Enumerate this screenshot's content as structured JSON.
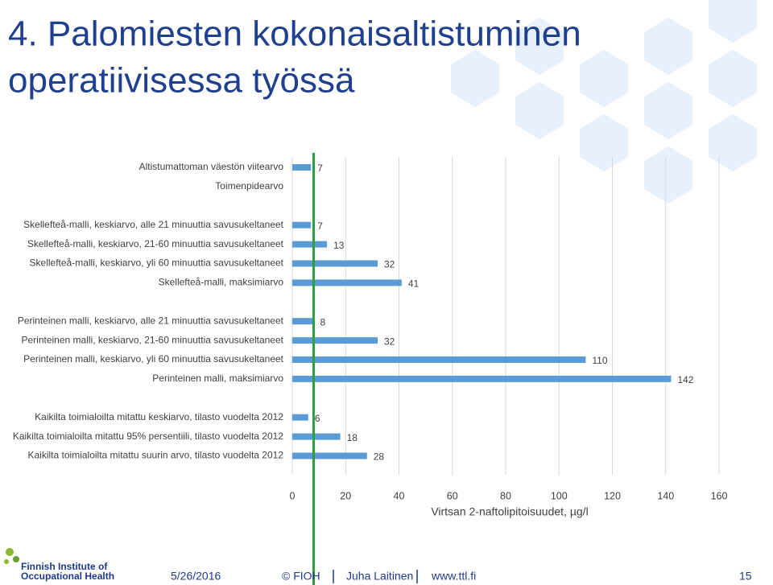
{
  "title": [
    "4. Palomiesten kokonaisaltistuminen",
    "operatiivisessa työssä"
  ],
  "chart_data": {
    "type": "hbar",
    "categories": [
      "Altistumattoman väestön viitearvo",
      "Toimenpidearvo",
      null,
      "Skellefteå-malli, keskiarvo, alle 21 minuuttia savusukeltaneet",
      "Skellefteå-malli, keskiarvo, 21-60 minuuttia savusukeltaneet",
      "Skellefteå-malli, keskiarvo, yli 60 minuuttia savusukeltaneet",
      "Skellefteå-malli, maksimiarvo",
      null,
      "Perinteinen malli, keskiarvo, alle 21 minuuttia savusukeltaneet",
      "Perinteinen malli, keskiarvo, 21-60 minuuttia savusukeltaneet",
      "Perinteinen malli, keskiarvo, yli 60 minuuttia savusukeltaneet",
      "Perinteinen malli, maksimiarvo",
      null,
      "Kaikilta toimialoilta mitattu keskiarvo, tilasto vuodelta 2012",
      "Kaikilta toimialoilta mitattu 95% persentiili, tilasto vuodelta 2012",
      "Kaikilta toimialoilta mitattu suurin arvo, tilasto vuodelta 2012"
    ],
    "values": [
      7,
      null,
      null,
      7,
      13,
      32,
      41,
      null,
      8,
      32,
      110,
      142,
      null,
      6,
      18,
      28
    ],
    "color": "#5b9bd5",
    "xlim": [
      0,
      160
    ],
    "xticks": [
      0,
      20,
      40,
      60,
      80,
      100,
      120,
      140,
      160
    ],
    "xlabel": "Virtsan 2-naftolipitoisuudet, µg/l",
    "grid": true,
    "reference_line": {
      "value": 8,
      "color": "#2e9e3e"
    }
  },
  "logo": [
    "Finnish Institute of",
    "Occupational Health"
  ],
  "footer": {
    "date": "5/26/2016",
    "org": "© FIOH",
    "author": "Juha Laitinen",
    "url": "www.ttl.fi",
    "page": "15"
  }
}
